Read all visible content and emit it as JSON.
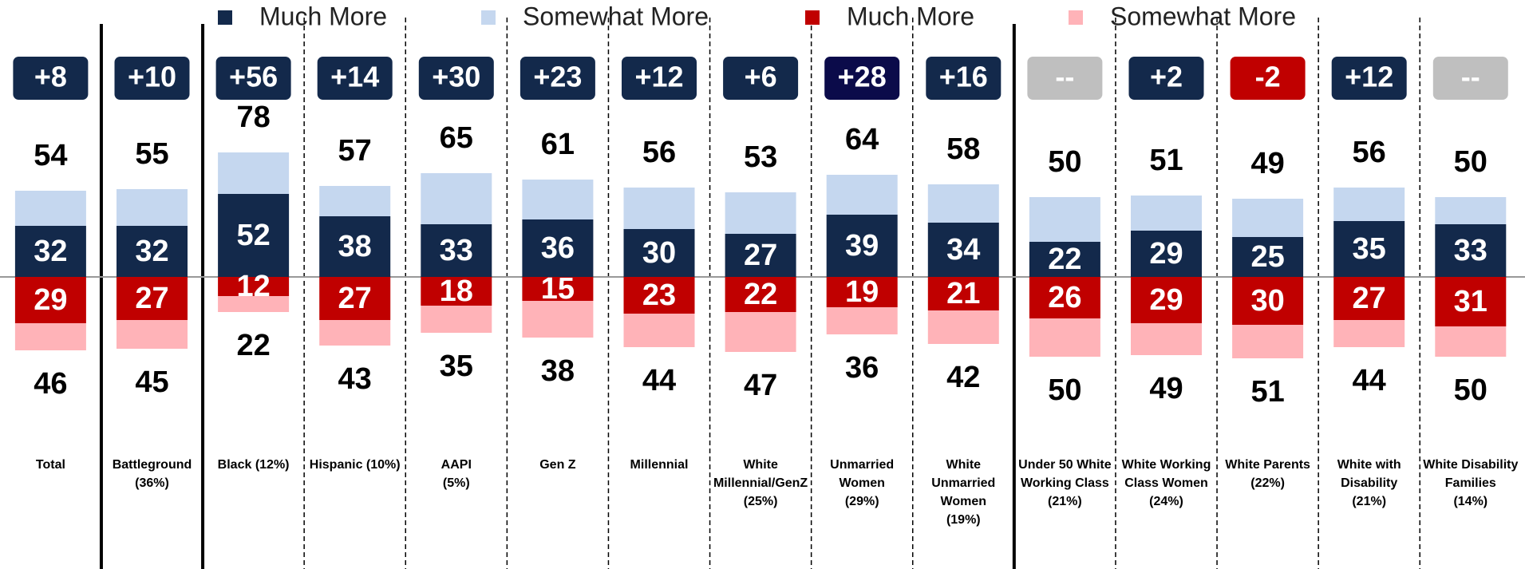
{
  "chart_data": {
    "type": "diverging_stacked_bar",
    "categories": [
      [
        "Total"
      ],
      [
        "Battleground",
        "(36%)"
      ],
      [
        "Black (12%)"
      ],
      [
        "Hispanic (10%)"
      ],
      [
        "AAPI",
        "(5%)"
      ],
      [
        "Gen Z"
      ],
      [
        "Millennial"
      ],
      [
        "White",
        "Millennial/GenZ",
        "(25%)"
      ],
      [
        "Unmarried",
        "Women",
        "(29%)"
      ],
      [
        "White",
        "Unmarried",
        "Women",
        "(19%)"
      ],
      [
        "Under 50 White",
        "Working Class",
        "(21%)"
      ],
      [
        "White Working",
        "Class Women",
        "(24%)"
      ],
      [
        "White Parents",
        "(22%)"
      ],
      [
        "White with",
        "Disability",
        "(21%)"
      ],
      [
        "White Disability",
        "Families",
        "(14%)"
      ]
    ],
    "series": [
      {
        "name": "Much More",
        "color": "#13294b",
        "stack": "positive",
        "show_labels": true,
        "values": [
          32,
          32,
          52,
          38,
          33,
          36,
          30,
          27,
          39,
          34,
          22,
          29,
          25,
          35,
          33
        ]
      },
      {
        "name": "Somewhat More",
        "color": "#c5d7ef",
        "stack": "positive",
        "show_labels": false,
        "values": [
          22,
          23,
          26,
          19,
          32,
          25,
          26,
          26,
          25,
          24,
          28,
          22,
          24,
          21,
          17
        ]
      },
      {
        "name": "Much More",
        "color": "#c00000",
        "stack": "negative",
        "show_labels": true,
        "values": [
          29,
          27,
          12,
          27,
          18,
          15,
          23,
          22,
          19,
          21,
          26,
          29,
          30,
          27,
          31
        ]
      },
      {
        "name": "Somewhat More",
        "color": "#ffb3b8",
        "stack": "negative",
        "show_labels": false,
        "values": [
          17,
          18,
          10,
          16,
          17,
          23,
          21,
          25,
          17,
          21,
          24,
          20,
          21,
          17,
          19
        ]
      }
    ],
    "totals_above": [
      54,
      55,
      78,
      57,
      65,
      61,
      56,
      53,
      64,
      58,
      50,
      51,
      49,
      56,
      50
    ],
    "totals_below": [
      46,
      45,
      22,
      43,
      35,
      38,
      44,
      47,
      36,
      42,
      50,
      49,
      51,
      44,
      50
    ],
    "net_values": [
      8,
      10,
      56,
      14,
      30,
      23,
      12,
      6,
      28,
      16,
      null,
      2,
      -2,
      12,
      null
    ],
    "net_labels": [
      "+8",
      "+10",
      "+56",
      "+14",
      "+30",
      "+23",
      "+12",
      "+6",
      "+28",
      "+16",
      "--",
      "+2",
      "-2",
      "+12",
      "--"
    ],
    "net_colors": [
      "#13294b",
      "#13294b",
      "#13294b",
      "#13294b",
      "#13294b",
      "#13294b",
      "#13294b",
      "#13294b",
      "#0b0b4a",
      "#13294b",
      "#bfbfbf",
      "#13294b",
      "#c00000",
      "#13294b",
      "#bfbfbf"
    ],
    "solid_dividers_after": [
      0,
      1,
      9
    ]
  }
}
